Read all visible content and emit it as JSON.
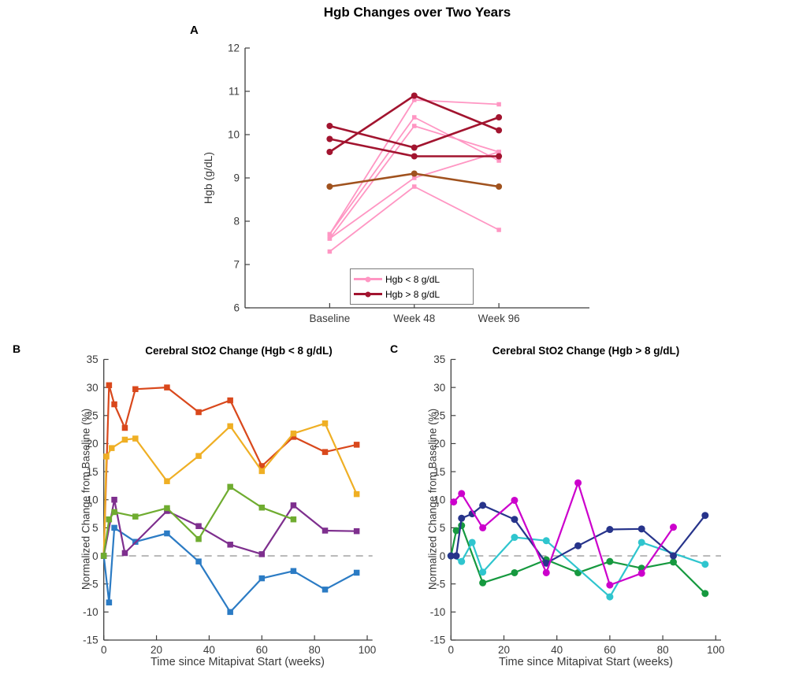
{
  "figure": {
    "panel_a": {
      "label": "A",
      "title": "Hgb Changes over Two Years",
      "ylabel": "Hgb (g/dL)"
    },
    "panel_b": {
      "label": "B",
      "title": "Cerebral StO2 Change (Hgb < 8 g/dL)",
      "ylabel": "Normalized Change from Baseline (%)",
      "xlabel": "Time since Mitapivat Start (weeks)"
    },
    "panel_c": {
      "label": "C",
      "title": "Cerebral StO2 Change (Hgb > 8 g/dL)",
      "ylabel": "Normalized Change from Baseline (%)",
      "xlabel": "Time since Mitapivat Start (weeks)"
    },
    "legend": {
      "items": [
        {
          "label": "Hgb < 8 g/dL",
          "color": "#FF96C3"
        },
        {
          "label": "Hgb > 8 g/dL",
          "color": "#A2142F"
        }
      ]
    },
    "colors": {
      "pink": "#FF96C3",
      "dark_red": "#A2142F",
      "brown": "#A0521E",
      "red_orange": "#D9481C",
      "amber": "#EFAF24",
      "blue": "#2B7BC4",
      "purple": "#7E2F8E",
      "green_b": "#6FAC30",
      "magenta": "#CC00CC",
      "navy": "#27348B",
      "cyan": "#2FC5CE",
      "green_c": "#16993F",
      "zero_line_gray": "#9a9a9a",
      "axis_gray": "#3f3f3f"
    }
  },
  "chart_data": [
    {
      "id": "A",
      "type": "line",
      "title": "Hgb Changes over Two Years",
      "ylabel": "Hgb (g/dL)",
      "categories": [
        "Baseline",
        "Week 48",
        "Week 96"
      ],
      "ylim": [
        6,
        12
      ],
      "yticks": [
        6,
        7,
        8,
        9,
        10,
        11,
        12
      ],
      "grid": false,
      "legend_position": "south-inside",
      "series": [
        {
          "name": "hgb-low-patient-1",
          "group": "Hgb < 8 g/dL",
          "color": "#FF96C3",
          "marker": "square",
          "marker_size": 5.5,
          "line_width": 1.8,
          "values": [
            7.7,
            10.8,
            10.7
          ]
        },
        {
          "name": "hgb-low-patient-2",
          "group": "Hgb < 8 g/dL",
          "color": "#FF96C3",
          "marker": "square",
          "marker_size": 5.5,
          "line_width": 1.8,
          "values": [
            7.7,
            10.4,
            9.4
          ]
        },
        {
          "name": "hgb-low-patient-3",
          "group": "Hgb < 8 g/dL",
          "color": "#FF96C3",
          "marker": "square",
          "marker_size": 5.5,
          "line_width": 1.8,
          "values": [
            7.6,
            10.2,
            9.6
          ]
        },
        {
          "name": "hgb-low-patient-4",
          "group": "Hgb < 8 g/dL",
          "color": "#FF96C3",
          "marker": "square",
          "marker_size": 5.5,
          "line_width": 1.8,
          "values": [
            7.6,
            9.0,
            9.6
          ]
        },
        {
          "name": "hgb-low-patient-5",
          "group": "Hgb < 8 g/dL",
          "color": "#FF96C3",
          "marker": "square",
          "marker_size": 5.5,
          "line_width": 1.8,
          "values": [
            7.3,
            8.8,
            7.8
          ]
        },
        {
          "name": "hgb-high-patient-1",
          "group": "Hgb > 8 g/dL",
          "color": "#A2142F",
          "marker": "circle",
          "marker_size": 8,
          "line_width": 2.6,
          "values": [
            10.2,
            9.7,
            10.4
          ]
        },
        {
          "name": "hgb-high-patient-2",
          "group": "Hgb > 8 g/dL",
          "color": "#A2142F",
          "marker": "circle",
          "marker_size": 8,
          "line_width": 2.6,
          "values": [
            9.9,
            9.5,
            9.5
          ]
        },
        {
          "name": "hgb-high-patient-3",
          "group": "Hgb > 8 g/dL",
          "color": "#A2142F",
          "marker": "circle",
          "marker_size": 8,
          "line_width": 2.6,
          "values": [
            9.6,
            10.9,
            10.1
          ]
        },
        {
          "name": "hgb-high-patient-4",
          "group": "Hgb > 8 g/dL",
          "color": "#A0521E",
          "marker": "circle",
          "marker_size": 8,
          "line_width": 2.6,
          "values": [
            8.8,
            9.1,
            8.8
          ]
        }
      ]
    },
    {
      "id": "B",
      "type": "line",
      "title": "Cerebral StO2 Change (Hgb < 8 g/dL)",
      "xlabel": "Time since Mitapivat Start (weeks)",
      "ylabel": "Normalized Change from Baseline (%)",
      "xlim": [
        0,
        102
      ],
      "ylim": [
        -15,
        35
      ],
      "xticks": [
        0,
        20,
        40,
        60,
        80,
        100
      ],
      "yticks": [
        -15,
        -10,
        -5,
        0,
        5,
        10,
        15,
        20,
        25,
        30,
        35
      ],
      "grid": false,
      "zeroline": true,
      "series": [
        {
          "name": "sto2-low-red",
          "color": "#D9481C",
          "marker": "square",
          "marker_size": 7.5,
          "line_width": 2.2,
          "x": [
            0,
            2,
            4,
            8,
            12,
            24,
            36,
            48,
            60,
            72,
            84,
            96
          ],
          "y": [
            0,
            30.4,
            27,
            22.8,
            29.7,
            30,
            25.6,
            27.7,
            16,
            21.2,
            18.5,
            19.8
          ]
        },
        {
          "name": "sto2-low-amber",
          "color": "#EFAF24",
          "marker": "square",
          "marker_size": 7.5,
          "line_width": 2.2,
          "x": [
            0,
            1,
            3,
            8,
            12,
            24,
            36,
            48,
            60,
            72,
            84,
            96
          ],
          "y": [
            0,
            17.7,
            19.2,
            20.7,
            20.9,
            13.3,
            17.8,
            23.1,
            15.1,
            21.8,
            23.6,
            11
          ]
        },
        {
          "name": "sto2-low-blue",
          "color": "#2B7BC4",
          "marker": "square",
          "marker_size": 7.5,
          "line_width": 2.2,
          "x": [
            0,
            2,
            4,
            12,
            24,
            36,
            48,
            60,
            72,
            84,
            96
          ],
          "y": [
            0,
            -8.3,
            5,
            2.5,
            4,
            -1,
            -10,
            -4,
            -2.7,
            -6,
            -3
          ]
        },
        {
          "name": "sto2-low-purple",
          "color": "#7E2F8E",
          "marker": "square",
          "marker_size": 7.5,
          "line_width": 2.2,
          "x": [
            0,
            4,
            8,
            24,
            36,
            48,
            60,
            72,
            84,
            96
          ],
          "y": [
            0,
            10,
            0.5,
            8,
            5.3,
            2,
            0.3,
            9,
            4.5,
            4.4
          ]
        },
        {
          "name": "sto2-low-green",
          "color": "#6FAC30",
          "marker": "square",
          "marker_size": 7.5,
          "line_width": 2.2,
          "x": [
            0,
            2,
            4,
            12,
            24,
            36,
            48,
            60,
            72
          ],
          "y": [
            0,
            6.5,
            7.8,
            7,
            8.5,
            3,
            12.3,
            8.6,
            6.5
          ]
        }
      ]
    },
    {
      "id": "C",
      "type": "line",
      "title": "Cerebral StO2 Change (Hgb > 8 g/dL)",
      "xlabel": "Time since Mitapivat Start (weeks)",
      "ylabel": "Normalized Change from Baseline (%)",
      "xlim": [
        0,
        102
      ],
      "ylim": [
        -15,
        35
      ],
      "xticks": [
        0,
        20,
        40,
        60,
        80,
        100
      ],
      "yticks": [
        -15,
        -10,
        -5,
        0,
        5,
        10,
        15,
        20,
        25,
        30,
        35
      ],
      "grid": false,
      "zeroline": true,
      "series": [
        {
          "name": "sto2-high-green",
          "color": "#16993F",
          "marker": "circle",
          "marker_size": 9,
          "line_width": 2.2,
          "x": [
            0,
            2,
            4,
            12,
            24,
            36,
            48,
            60,
            72,
            84,
            96
          ],
          "y": [
            0,
            4.5,
            5.4,
            -4.8,
            -3,
            -0.7,
            -3,
            -1,
            -2.2,
            -1.1,
            -6.7
          ]
        },
        {
          "name": "sto2-high-cyan",
          "color": "#2FC5CE",
          "marker": "circle",
          "marker_size": 9,
          "line_width": 2.2,
          "x": [
            0,
            4,
            8,
            12,
            24,
            36,
            60,
            72,
            96
          ],
          "y": [
            0,
            -1,
            2.4,
            -2.9,
            3.3,
            2.7,
            -7.3,
            2.4,
            -1.5
          ]
        },
        {
          "name": "sto2-high-navy",
          "color": "#27348B",
          "marker": "circle",
          "marker_size": 9,
          "line_width": 2.2,
          "x": [
            0,
            2,
            4,
            8,
            12,
            24,
            36,
            48,
            60,
            72,
            84,
            96
          ],
          "y": [
            0,
            0,
            6.7,
            7.5,
            9,
            6.5,
            -1.3,
            1.8,
            4.7,
            4.8,
            0,
            7.2
          ]
        },
        {
          "name": "sto2-high-magenta",
          "color": "#CC00CC",
          "marker": "circle",
          "marker_size": 9,
          "line_width": 2.2,
          "x": [
            1,
            4,
            12,
            24,
            36,
            48,
            60,
            72,
            84
          ],
          "y": [
            9.6,
            11.1,
            5,
            9.9,
            -3,
            13,
            -5.2,
            -3.1,
            5.1
          ]
        }
      ]
    }
  ]
}
